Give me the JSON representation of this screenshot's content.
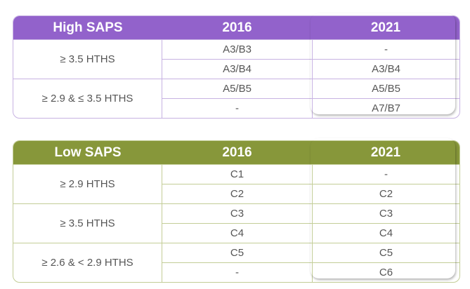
{
  "tables": [
    {
      "header": [
        "High SAPS",
        "2016",
        "2021"
      ],
      "header_color": "#9262cb",
      "line_color": "#c7b2e2",
      "box_color": "#6a3bb2",
      "groups": [
        {
          "label": "≥ 3.5 HTHS",
          "rows": [
            [
              "A3/B3",
              "-"
            ],
            [
              "A3/B4",
              "A3/B4"
            ]
          ]
        },
        {
          "label": "≥ 2.9 & ≤ 3.5 HTHS",
          "rows": [
            [
              "A5/B5",
              "A5/B5"
            ],
            [
              "-",
              "A7/B7"
            ]
          ]
        }
      ]
    },
    {
      "header": [
        "Low SAPS",
        "2016",
        "2021"
      ],
      "header_color": "#87973a",
      "line_color": "#c3cd97",
      "box_color": "#3b4a1f",
      "groups": [
        {
          "label": "≥ 2.9 HTHS",
          "rows": [
            [
              "C1",
              "-"
            ],
            [
              "C2",
              "C2"
            ]
          ]
        },
        {
          "label": "≥ 3.5 HTHS",
          "rows": [
            [
              "C3",
              "C3"
            ],
            [
              "C4",
              "C4"
            ]
          ]
        },
        {
          "label": "≥ 2.6 & < 2.9 HTHS",
          "rows": [
            [
              "C5",
              "C5"
            ],
            [
              "-",
              "C6"
            ]
          ]
        }
      ]
    }
  ]
}
